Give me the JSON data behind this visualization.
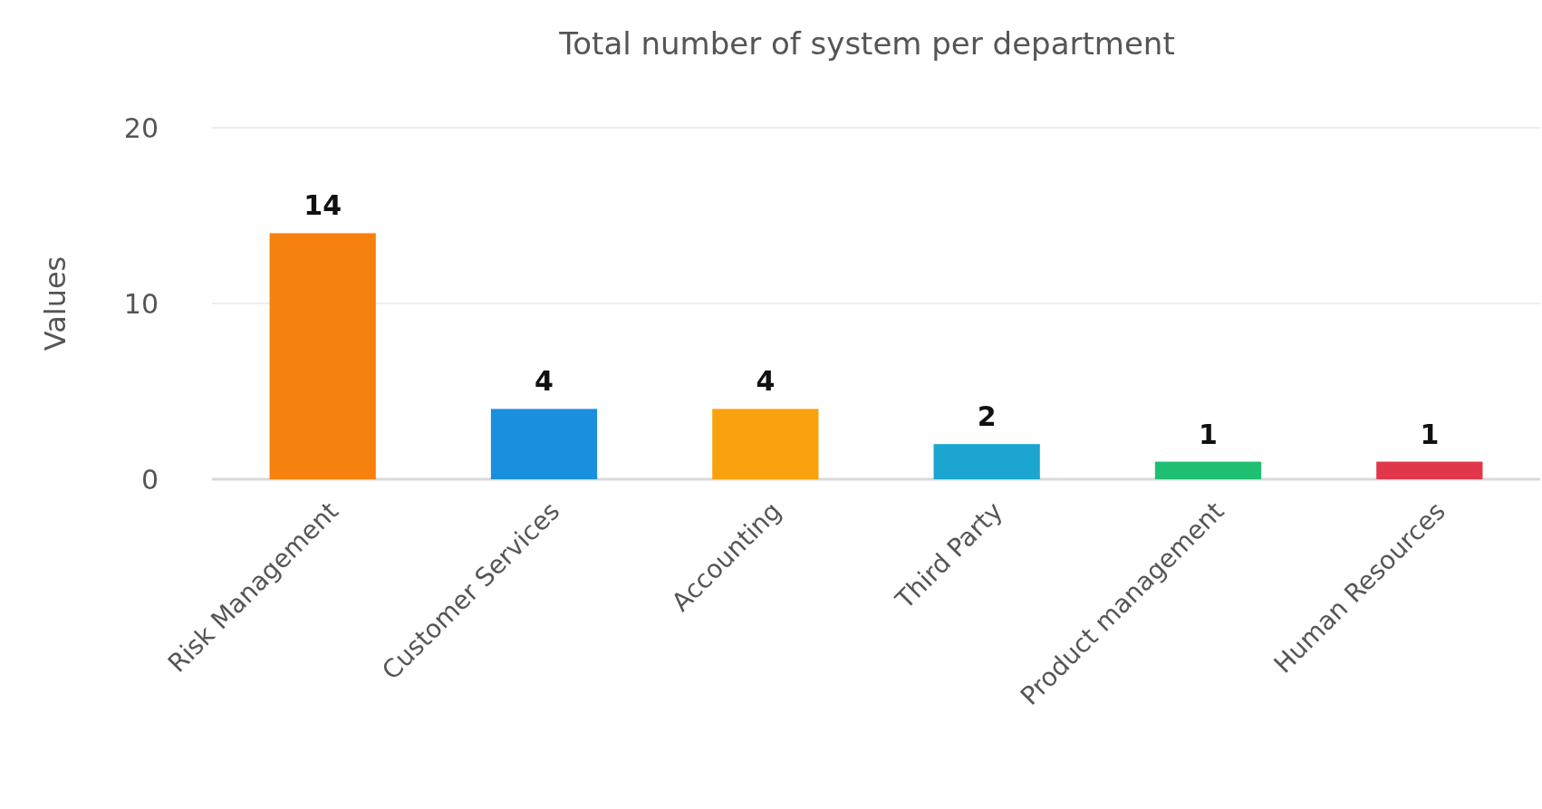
{
  "chart_data": {
    "type": "bar",
    "title": "Total number of system per department",
    "ylabel": "Values",
    "categories": [
      "Risk Management",
      "Customer Services",
      "Accounting",
      "Third Party",
      "Product management",
      "Human Resources"
    ],
    "values": [
      14,
      4,
      4,
      2,
      1,
      1
    ],
    "colors": [
      "#f7810e",
      "#1a8fdc",
      "#f9a10f",
      "#1ba5d0",
      "#1fbf71",
      "#e0384a"
    ],
    "ylim": [
      0,
      20
    ],
    "yticks": [
      0,
      10,
      20
    ],
    "grid": "y",
    "data_labels": true
  }
}
